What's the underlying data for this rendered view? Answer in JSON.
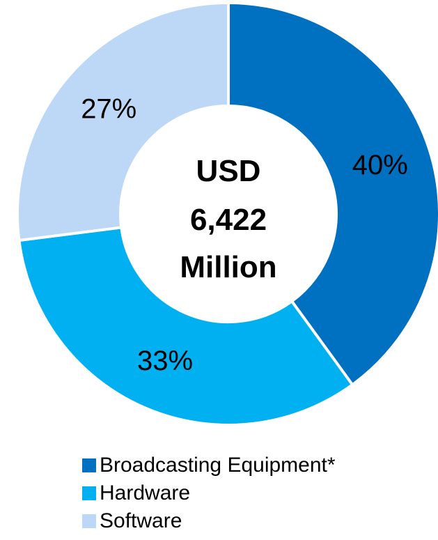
{
  "chart_data": {
    "type": "pie",
    "center_label": [
      "USD",
      "6,422",
      "Million"
    ],
    "categories": [
      "Broadcasting Equipment*",
      "Hardware",
      "Software"
    ],
    "values": [
      40,
      33,
      27
    ],
    "value_labels": [
      "40%",
      "33%",
      "27%"
    ],
    "colors": [
      "#0070C0",
      "#00B0F0",
      "#BDD7F7"
    ],
    "legend_position": "bottom"
  }
}
